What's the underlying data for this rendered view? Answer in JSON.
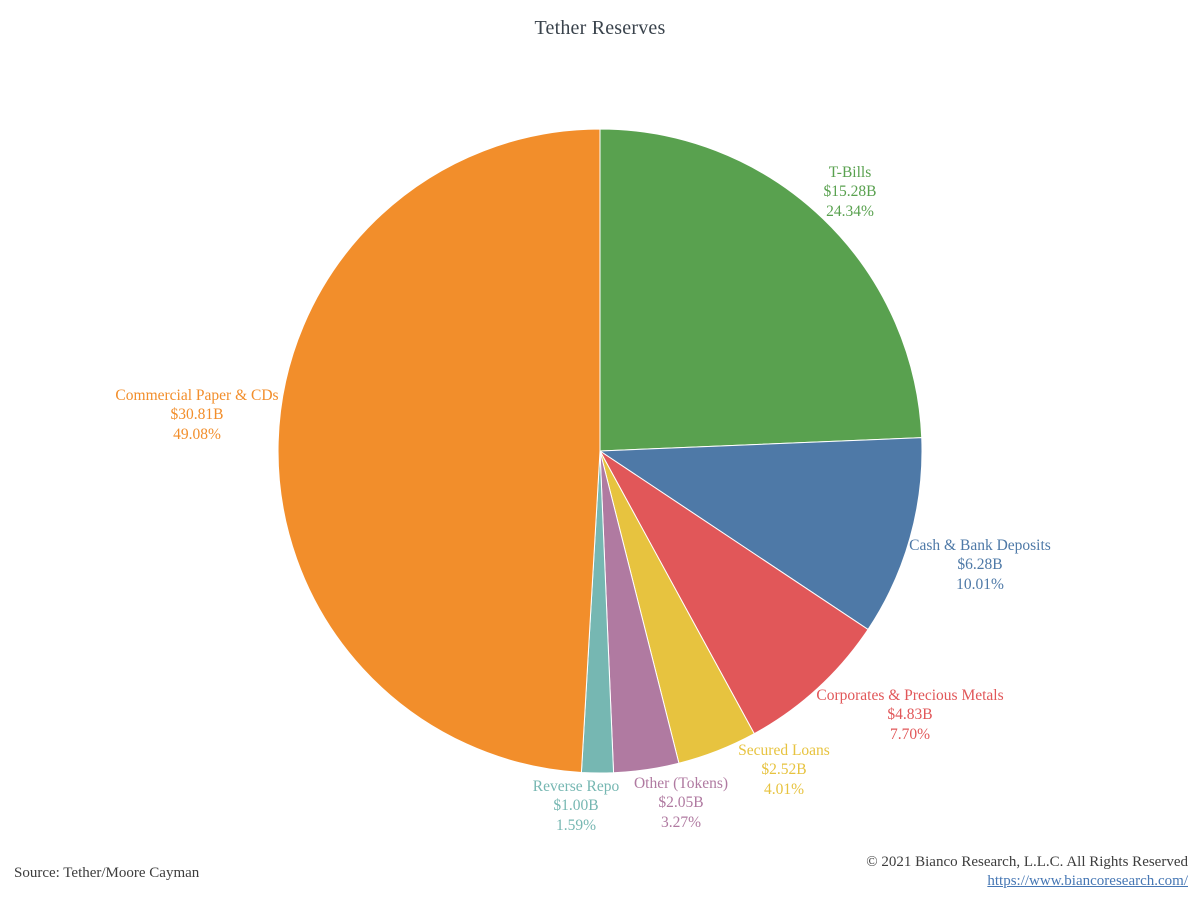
{
  "title": "Tether Reserves",
  "footer": {
    "source": "Source: Tether/Moore Cayman",
    "copyright": "© 2021 Bianco Research, L.L.C. All Rights Reserved",
    "link": "https://www.biancoresearch.com/"
  },
  "chart_data": {
    "type": "pie",
    "title": "Tether Reserves",
    "unit": "USD billions",
    "start_angle_deg": -90,
    "direction": "clockwise",
    "slices": [
      {
        "label": "T-Bills",
        "value_label": "$15.28B",
        "pct_label": "24.34%",
        "value_b": 15.28,
        "pct": 24.34,
        "color": "#59a14f"
      },
      {
        "label": "Cash & Bank Deposits",
        "value_label": "$6.28B",
        "pct_label": "10.01%",
        "value_b": 6.28,
        "pct": 10.01,
        "color": "#4e79a7"
      },
      {
        "label": "Corporates & Precious Metals",
        "value_label": "$4.83B",
        "pct_label": "7.70%",
        "value_b": 4.83,
        "pct": 7.7,
        "color": "#e15759"
      },
      {
        "label": "Secured Loans",
        "value_label": "$2.52B",
        "pct_label": "4.01%",
        "value_b": 2.52,
        "pct": 4.01,
        "color": "#e7c33f"
      },
      {
        "label": "Other (Tokens)",
        "value_label": "$2.05B",
        "pct_label": "3.27%",
        "value_b": 2.05,
        "pct": 3.27,
        "color": "#b07aa1"
      },
      {
        "label": "Reverse Repo",
        "value_label": "$1.00B",
        "pct_label": "1.59%",
        "value_b": 1.0,
        "pct": 1.59,
        "color": "#76b7b2"
      },
      {
        "label": "Commercial Paper & CDs",
        "value_label": "$30.81B",
        "pct_label": "49.08%",
        "value_b": 30.81,
        "pct": 49.08,
        "color": "#f28e2b"
      }
    ]
  }
}
